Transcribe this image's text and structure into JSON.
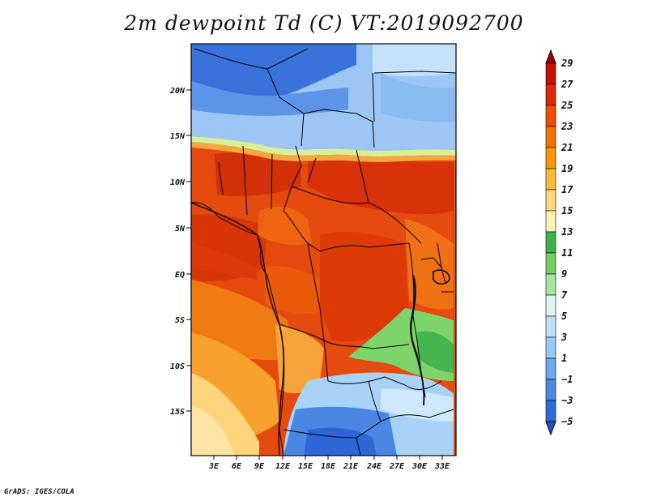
{
  "title": "2m dewpoint Td (C) VT:2019092700",
  "credit": "GrADS: IGES/COLA",
  "map": {
    "variable": "2m dewpoint",
    "units": "C",
    "valid_time": "2019092700",
    "lat_ticks": [
      "20N",
      "15N",
      "10N",
      "5N",
      "EQ",
      "5S",
      "10S",
      "15S"
    ],
    "lon_ticks": [
      "3E",
      "6E",
      "9E",
      "12E",
      "15E",
      "18E",
      "21E",
      "24E",
      "27E",
      "30E",
      "33E"
    ]
  },
  "colorbar": {
    "levels": [
      "29",
      "27",
      "25",
      "23",
      "21",
      "19",
      "17",
      "15",
      "13",
      "11",
      "9",
      "7",
      "5",
      "3",
      "1",
      "−1",
      "−3",
      "−5"
    ],
    "colors": [
      "#a00000",
      "#c80f00",
      "#e02800",
      "#f04d00",
      "#f57000",
      "#f89808",
      "#fbb83a",
      "#fdd77c",
      "#fef2b5",
      "#3cb34a",
      "#72cf63",
      "#a6e6a0",
      "#dff6f0",
      "#bfe2fb",
      "#96c9f6",
      "#6ea9ef",
      "#4a89e6",
      "#2e6bda",
      "#1d55cc"
    ]
  }
}
